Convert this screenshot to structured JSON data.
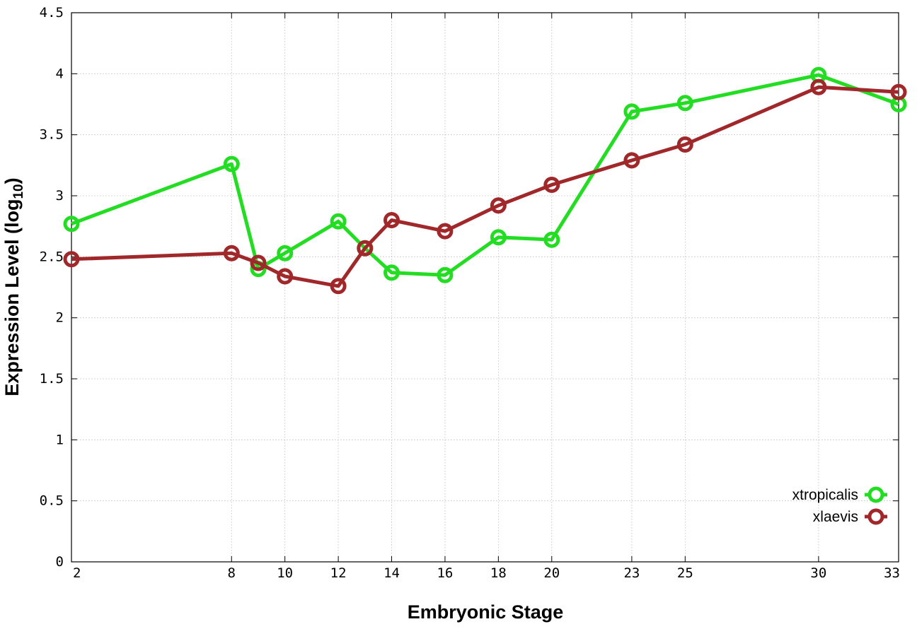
{
  "chart_data": {
    "type": "line",
    "title": "",
    "xlabel": "Embryonic Stage",
    "ylabel": "Expression Level (log",
    "ylabel_sub": "10",
    "ylabel_close": ")",
    "xlim": [
      2,
      33
    ],
    "ylim": [
      0,
      4.5
    ],
    "x_ticks": [
      2,
      8,
      10,
      12,
      14,
      16,
      18,
      20,
      23,
      25,
      30,
      33
    ],
    "y_ticks": [
      {
        "value": 0,
        "label": "0"
      },
      {
        "value": 0.5,
        "label": "0.5"
      },
      {
        "value": 1,
        "label": "1"
      },
      {
        "value": 1.5,
        "label": "1.5"
      },
      {
        "value": 2,
        "label": "2"
      },
      {
        "value": 2.5,
        "label": "2.5"
      },
      {
        "value": 3,
        "label": "3"
      },
      {
        "value": 3.5,
        "label": "3.5"
      },
      {
        "value": 4,
        "label": "4"
      },
      {
        "value": 4.5,
        "label": "4.5"
      }
    ],
    "grid": true,
    "legend_position": "bottom-right",
    "series": [
      {
        "name": "xtropicalis",
        "color": "#22dd22",
        "x": [
          2,
          8,
          9,
          10,
          12,
          13,
          14,
          16,
          18,
          20,
          23,
          25,
          30,
          33
        ],
        "y": [
          2.77,
          3.26,
          2.4,
          2.53,
          2.79,
          2.57,
          2.37,
          2.35,
          2.66,
          2.64,
          3.69,
          3.76,
          3.99,
          3.75
        ]
      },
      {
        "name": "xlaevis",
        "color": "#a0282a",
        "x": [
          2,
          8,
          9,
          10,
          12,
          13,
          14,
          16,
          18,
          20,
          23,
          25,
          30,
          33
        ],
        "y": [
          2.48,
          2.53,
          2.45,
          2.34,
          2.26,
          2.57,
          2.8,
          2.71,
          2.92,
          3.09,
          3.29,
          3.42,
          3.89,
          3.85
        ]
      }
    ]
  }
}
